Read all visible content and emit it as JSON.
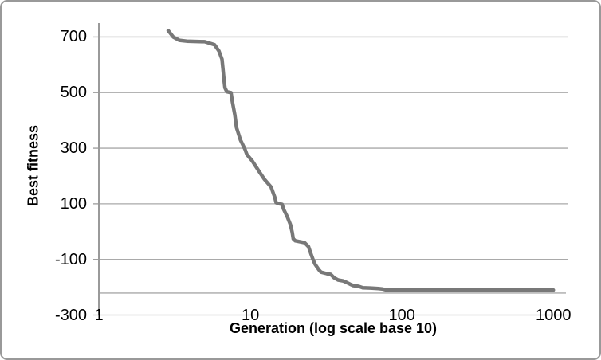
{
  "window": {
    "background": "#ffffff",
    "border_color": "#999999"
  },
  "chart_data": {
    "type": "line",
    "title": "",
    "xlabel": "Generation (log scale base 10)",
    "ylabel": "Best fitness",
    "x_scale": "log10",
    "x_ticks": [
      1,
      10,
      100,
      1000
    ],
    "y_ticks": [
      700,
      500,
      300,
      100,
      -100,
      -300
    ],
    "xlim": [
      1,
      1240
    ],
    "ylim": [
      -300,
      750
    ],
    "grid": "horizontal",
    "legend": "none",
    "extra_hline_value": -221,
    "line_color": "#787878",
    "grid_color": "#a9a9a9",
    "axis_color": "#9a9a9a",
    "text_color": "#000000",
    "series": [
      {
        "name": "best-fitness",
        "points": [
          [
            2.87,
            723
          ],
          [
            3.1,
            700
          ],
          [
            3.4,
            688
          ],
          [
            3.8,
            685
          ],
          [
            5.0,
            683
          ],
          [
            5.8,
            672
          ],
          [
            6.2,
            650
          ],
          [
            6.5,
            620
          ],
          [
            6.6,
            583
          ],
          [
            6.7,
            546
          ],
          [
            6.8,
            517
          ],
          [
            7.0,
            503
          ],
          [
            7.45,
            500
          ],
          [
            7.6,
            469
          ],
          [
            7.9,
            420
          ],
          [
            8.1,
            374
          ],
          [
            8.6,
            330
          ],
          [
            9.2,
            297
          ],
          [
            9.5,
            277
          ],
          [
            10.3,
            254
          ],
          [
            11.4,
            217
          ],
          [
            12.4,
            188
          ],
          [
            13.7,
            160
          ],
          [
            14.5,
            123
          ],
          [
            14.8,
            104
          ],
          [
            15.6,
            100
          ],
          [
            16.2,
            98
          ],
          [
            16.6,
            80
          ],
          [
            17.5,
            54
          ],
          [
            18.4,
            25
          ],
          [
            18.9,
            -3
          ],
          [
            19.2,
            -26
          ],
          [
            19.8,
            -33
          ],
          [
            21.5,
            -37
          ],
          [
            22.8,
            -40
          ],
          [
            24.2,
            -54
          ],
          [
            25.1,
            -80
          ],
          [
            26.0,
            -103
          ],
          [
            26.7,
            -117
          ],
          [
            28.3,
            -137
          ],
          [
            29.3,
            -146
          ],
          [
            31.9,
            -151
          ],
          [
            33.9,
            -154
          ],
          [
            35.7,
            -166
          ],
          [
            37.9,
            -174
          ],
          [
            40.8,
            -177
          ],
          [
            43.3,
            -183
          ],
          [
            45.5,
            -189
          ],
          [
            47.7,
            -194
          ],
          [
            51.9,
            -197
          ],
          [
            55.2,
            -202
          ],
          [
            62.0,
            -203
          ],
          [
            70.0,
            -205
          ],
          [
            74.0,
            -206
          ],
          [
            79.0,
            -210
          ],
          [
            1000,
            -210
          ]
        ]
      }
    ]
  }
}
